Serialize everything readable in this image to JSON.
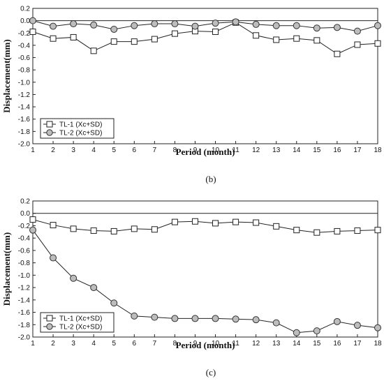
{
  "chart_data": [
    {
      "type": "line",
      "panel_label": "(b)",
      "xlabel": "Period (month)",
      "ylabel": "Displacement(mm)",
      "x": [
        1,
        2,
        3,
        4,
        5,
        6,
        7,
        8,
        9,
        10,
        11,
        12,
        13,
        14,
        15,
        16,
        17,
        18
      ],
      "xlim": [
        1,
        18
      ],
      "ylim": [
        -2.0,
        0.2
      ],
      "yticks": [
        "0.2",
        "0.0",
        "-0.2",
        "-0.4",
        "-0.6",
        "-0.8",
        "-1.0",
        "-1.2",
        "-1.4",
        "-1.6",
        "-1.8",
        "-2.0"
      ],
      "xticks": [
        "1",
        "2",
        "3",
        "4",
        "5",
        "6",
        "7",
        "8",
        "9",
        "10",
        "11",
        "12",
        "13",
        "14",
        "15",
        "16",
        "17",
        "18"
      ],
      "legend_position": "bottom-left",
      "series": [
        {
          "name": "TL-1 (Xc+SD)",
          "marker": "square",
          "values": [
            -0.18,
            -0.29,
            -0.27,
            -0.49,
            -0.34,
            -0.34,
            -0.3,
            -0.21,
            -0.17,
            -0.18,
            -0.03,
            -0.24,
            -0.31,
            -0.29,
            -0.32,
            -0.54,
            -0.39,
            -0.37
          ]
        },
        {
          "name": "TL-2 (Xc+SD)",
          "marker": "circle",
          "values": [
            0.0,
            -0.09,
            -0.05,
            -0.07,
            -0.14,
            -0.08,
            -0.05,
            -0.05,
            -0.09,
            -0.04,
            -0.02,
            -0.06,
            -0.08,
            -0.08,
            -0.12,
            -0.11,
            -0.17,
            -0.08
          ]
        }
      ]
    },
    {
      "type": "line",
      "panel_label": "(c)",
      "xlabel": "Period (month)",
      "ylabel": "Displacement(mm)",
      "x": [
        1,
        2,
        3,
        4,
        5,
        6,
        7,
        8,
        9,
        10,
        11,
        12,
        13,
        14,
        15,
        16,
        17,
        18
      ],
      "xlim": [
        1,
        18
      ],
      "ylim": [
        -2.0,
        0.2
      ],
      "yticks": [
        "0.2",
        "0.0",
        "-0.2",
        "-0.4",
        "-0.6",
        "-0.8",
        "-1.0",
        "-1.2",
        "-1.4",
        "-1.6",
        "-1.8",
        "-2.0"
      ],
      "xticks": [
        "1",
        "2",
        "3",
        "4",
        "5",
        "6",
        "7",
        "8",
        "9",
        "10",
        "11",
        "12",
        "13",
        "14",
        "15",
        "16",
        "17",
        "18"
      ],
      "legend_position": "bottom-left",
      "series": [
        {
          "name": "TL-1 (Xc+SD)",
          "marker": "square",
          "values": [
            -0.1,
            -0.19,
            -0.25,
            -0.28,
            -0.29,
            -0.25,
            -0.26,
            -0.14,
            -0.13,
            -0.16,
            -0.14,
            -0.15,
            -0.21,
            -0.27,
            -0.31,
            -0.29,
            -0.28,
            -0.27
          ]
        },
        {
          "name": "TL-2 (Xc+SD)",
          "marker": "circle",
          "values": [
            -0.27,
            -0.72,
            -1.05,
            -1.2,
            -1.45,
            -1.66,
            -1.68,
            -1.7,
            -1.7,
            -1.7,
            -1.71,
            -1.72,
            -1.77,
            -1.93,
            -1.9,
            -1.75,
            -1.81,
            -1.85
          ]
        }
      ]
    }
  ]
}
